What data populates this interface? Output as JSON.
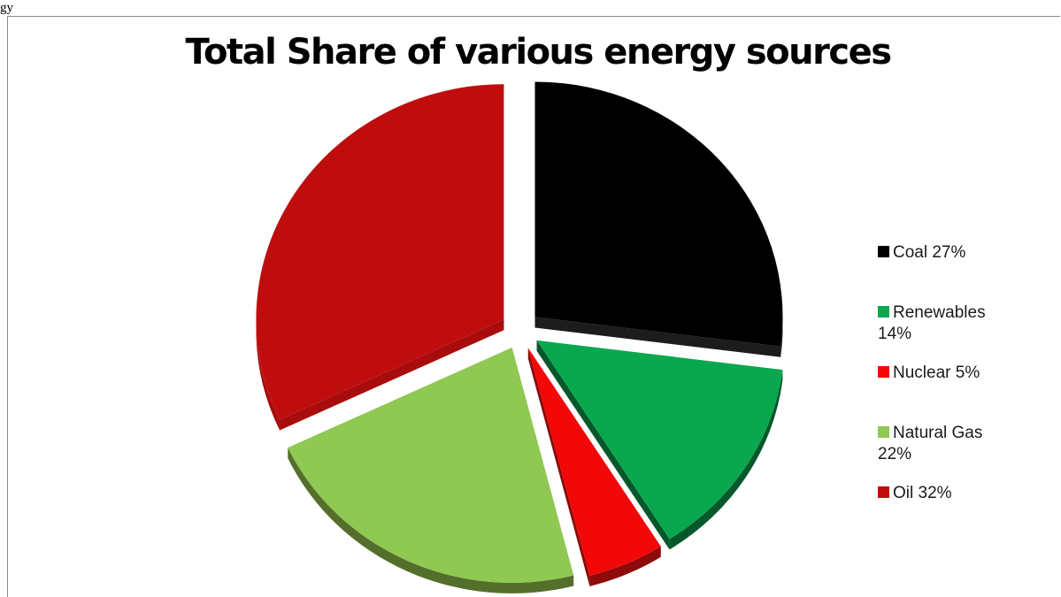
{
  "caption": "gy",
  "chart_data": {
    "type": "pie",
    "title": "Total Share of various energy sources",
    "exploded": true,
    "three_d": true,
    "legend_position": "right",
    "slices": [
      {
        "label": "Coal",
        "legend": "Coal 27%",
        "value": 27,
        "color": "#000000",
        "side_color": "#1c1c1c"
      },
      {
        "label": "Renewables",
        "legend": "Renewables 14%",
        "value": 14,
        "color": "#0aa84e",
        "side_color": "#06582a"
      },
      {
        "label": "Nuclear",
        "legend": "Nuclear 5%",
        "value": 5,
        "color": "#f20808",
        "side_color": "#8e0a0a"
      },
      {
        "label": "Natural Gas",
        "legend": "Natural Gas 22%",
        "value": 22,
        "color": "#8fc852",
        "side_color": "#546f2c"
      },
      {
        "label": "Oil",
        "legend": "Oil 32%",
        "value": 32,
        "color": "#bf0d0d",
        "side_color": "#a80c0c"
      }
    ]
  }
}
